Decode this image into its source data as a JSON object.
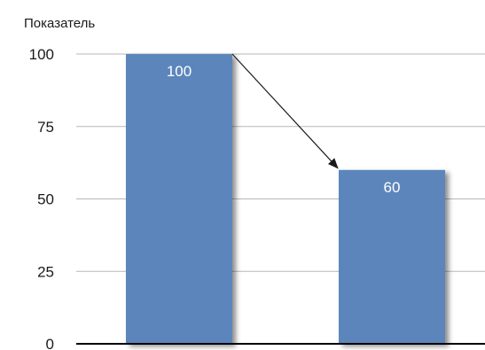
{
  "chart_data": {
    "type": "bar",
    "ylabel": "Показатель",
    "xlabel": "",
    "categories": [
      "",
      ""
    ],
    "values": [
      100,
      60
    ],
    "data_labels": [
      "100",
      "60"
    ],
    "ylim": [
      0,
      100
    ],
    "yticks": [
      0,
      25,
      50,
      75,
      100
    ],
    "ytick_labels": [
      "0",
      "25",
      "50",
      "75",
      "100"
    ],
    "grid": true,
    "legend": "none",
    "annotations": [
      {
        "type": "arrow",
        "from_bar": 0,
        "to_bar": 1,
        "from_value": 100,
        "to_value": 60
      }
    ]
  },
  "colors": {
    "bar": "#5b86bb",
    "grid": "#b7b7b7",
    "axis": "#000000",
    "arrow": "#1a1a1a",
    "value_label": "#ffffff",
    "text": "#1a1a1a"
  }
}
